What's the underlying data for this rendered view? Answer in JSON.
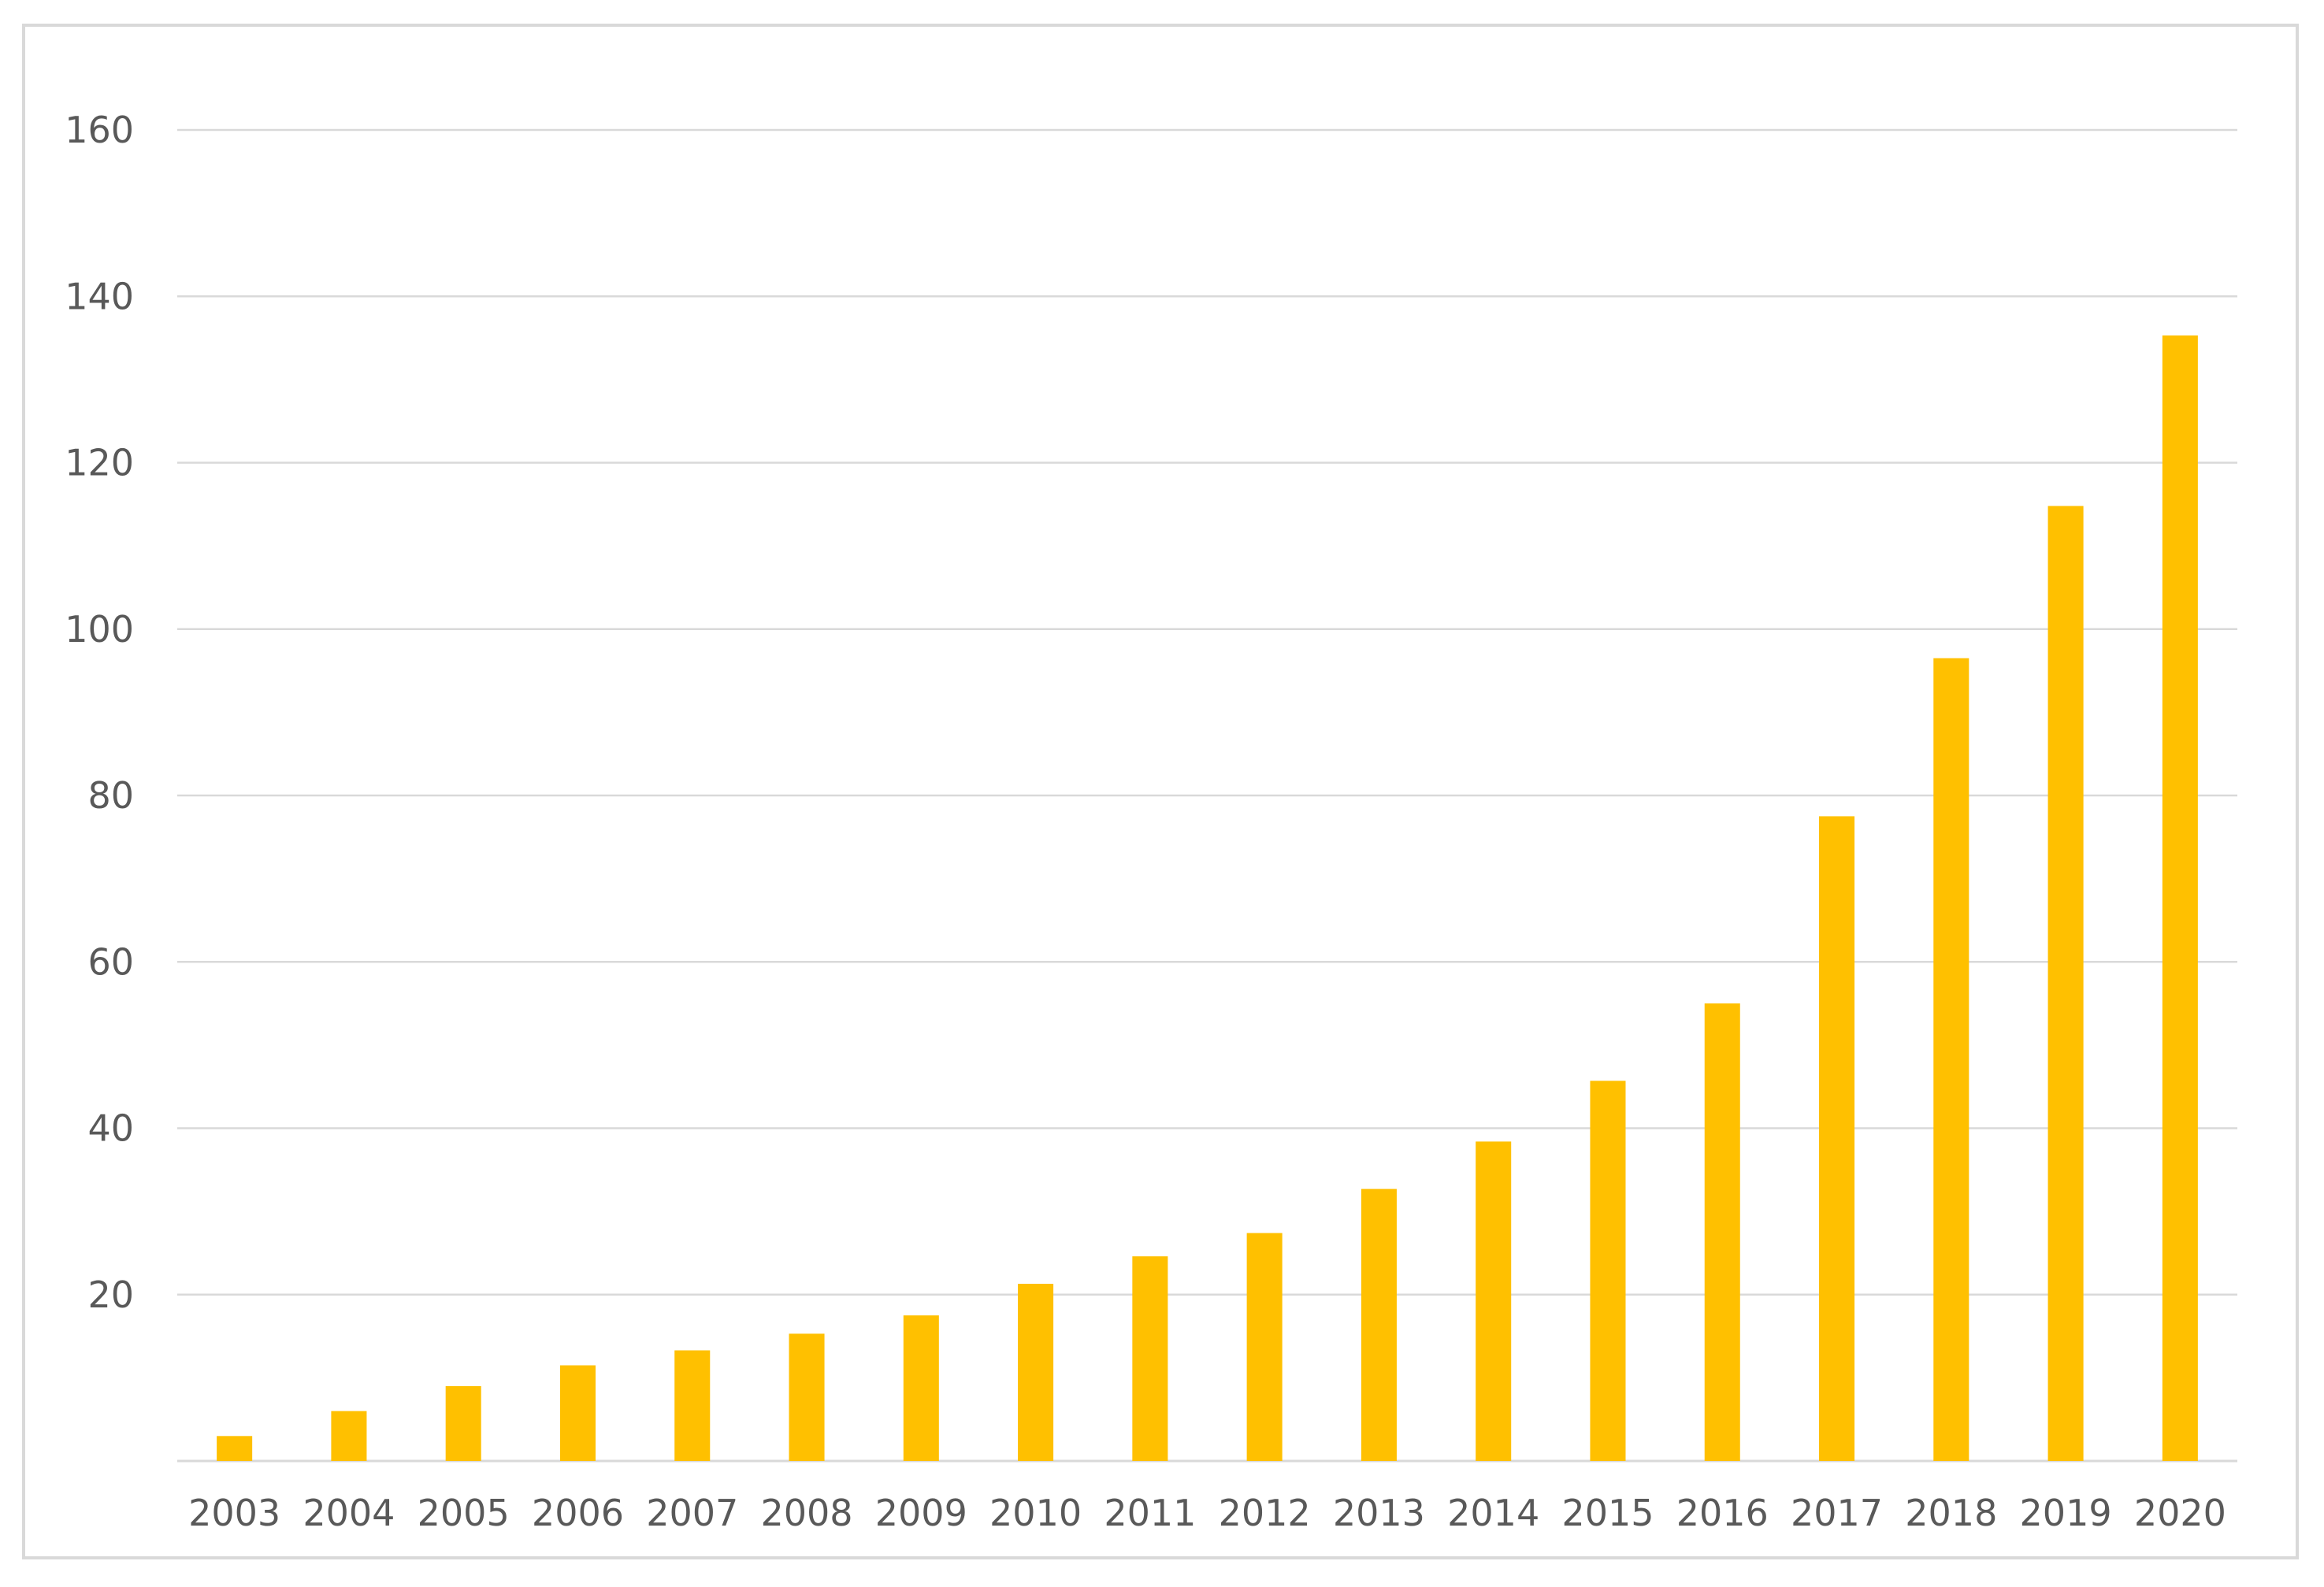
{
  "chart_data": {
    "type": "bar",
    "title": "",
    "xlabel": "",
    "ylabel": "",
    "categories": [
      "2003",
      "2004",
      "2005",
      "2006",
      "2007",
      "2008",
      "2009",
      "2010",
      "2011",
      "2012",
      "2013",
      "2014",
      "2015",
      "2016",
      "2017",
      "2018",
      "2019",
      "2020"
    ],
    "values": [
      3,
      6,
      9,
      11.5,
      13.3,
      15.3,
      17.5,
      21.3,
      24.6,
      27.4,
      32.7,
      38.4,
      45.7,
      55,
      77.5,
      96.5,
      114.8,
      135.3
    ],
    "ylim": [
      0,
      160
    ],
    "yticks": [
      "20",
      "40",
      "60",
      "80",
      "100",
      "120",
      "140",
      "160"
    ],
    "grid": true,
    "legend": "none",
    "colors": {
      "bar": "#FFC000",
      "grid": "#d9d9d9",
      "axis": "#d9d9d9",
      "tick_text": "#595959"
    }
  }
}
